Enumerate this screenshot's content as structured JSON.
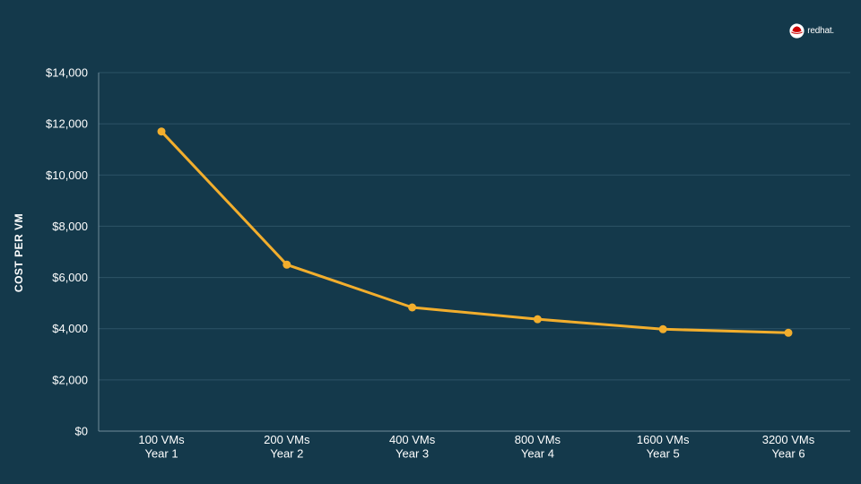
{
  "brand": {
    "logo_text": "redhat.",
    "icon": "redhat-shadowman-icon"
  },
  "colors": {
    "background": "#14394b",
    "line": "#f2ae2d",
    "grid": "#2d5366",
    "text": "#ffffff"
  },
  "chart_data": {
    "type": "line",
    "title": "",
    "ylabel": "COST PER VM",
    "xlabel": "",
    "categories": [
      [
        "100 VMs",
        "Year 1"
      ],
      [
        "200 VMs",
        "Year 2"
      ],
      [
        "400 VMs",
        "Year 3"
      ],
      [
        "800 VMs",
        "Year 4"
      ],
      [
        "1600 VMs",
        "Year 5"
      ],
      [
        "3200 VMs",
        "Year 6"
      ]
    ],
    "series": [
      {
        "values": [
          11700,
          6500,
          4830,
          4370,
          3980,
          3840
        ]
      }
    ],
    "ylim": [
      0,
      14000
    ],
    "yticks": [
      0,
      2000,
      4000,
      6000,
      8000,
      10000,
      12000,
      14000
    ],
    "ytick_labels": [
      "$0",
      "$2,000",
      "$4,000",
      "$6,000",
      "$8,000",
      "$10,000",
      "$12,000",
      "$14,000"
    ],
    "grid": true,
    "legend": "none"
  }
}
